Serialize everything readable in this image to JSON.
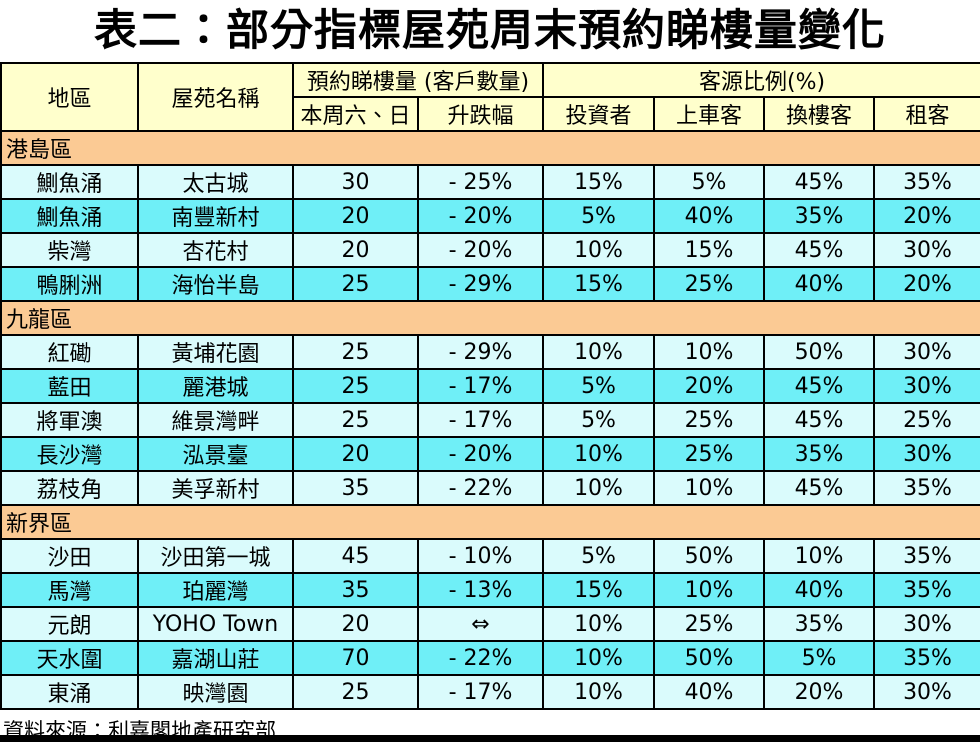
{
  "chart_data": {
    "type": "table",
    "title": "表二：部分指標屋苑周末預約睇樓量變化",
    "header": {
      "district": "地區",
      "estate": "屋苑名稱",
      "bookings_group": "預約睇樓量 (客戶數量)",
      "source_group": "客源比例(%)",
      "subcolumns": [
        "本周六、日",
        "升跌幅",
        "投資者",
        "上車客",
        "換樓客",
        "租客"
      ]
    },
    "sections": [
      {
        "name": "港島區",
        "rows": [
          [
            "鰂魚涌",
            "太古城",
            "30",
            "- 25%",
            "15%",
            "5%",
            "45%",
            "35%"
          ],
          [
            "鰂魚涌",
            "南豐新村",
            "20",
            "- 20%",
            "5%",
            "40%",
            "35%",
            "20%"
          ],
          [
            "柴灣",
            "杏花村",
            "20",
            "- 20%",
            "10%",
            "15%",
            "45%",
            "30%"
          ],
          [
            "鴨脷洲",
            "海怡半島",
            "25",
            "- 29%",
            "15%",
            "25%",
            "40%",
            "20%"
          ]
        ]
      },
      {
        "name": "九龍區",
        "rows": [
          [
            "紅磡",
            "黃埔花園",
            "25",
            "- 29%",
            "10%",
            "10%",
            "50%",
            "30%"
          ],
          [
            "藍田",
            "麗港城",
            "25",
            "- 17%",
            "5%",
            "20%",
            "45%",
            "30%"
          ],
          [
            "將軍澳",
            "維景灣畔",
            "25",
            "- 17%",
            "5%",
            "25%",
            "45%",
            "25%"
          ],
          [
            "長沙灣",
            "泓景臺",
            "20",
            "- 20%",
            "10%",
            "25%",
            "35%",
            "30%"
          ],
          [
            "荔枝角",
            "美孚新村",
            "35",
            "- 22%",
            "10%",
            "10%",
            "45%",
            "35%"
          ]
        ]
      },
      {
        "name": "新界區",
        "rows": [
          [
            "沙田",
            "沙田第一城",
            "45",
            "- 10%",
            "5%",
            "50%",
            "10%",
            "35%"
          ],
          [
            "馬灣",
            "珀麗灣",
            "35",
            "- 13%",
            "15%",
            "10%",
            "40%",
            "35%"
          ],
          [
            "元朗",
            "YOHO Town",
            "20",
            "⇔",
            "10%",
            "25%",
            "35%",
            "30%"
          ],
          [
            "天水圍",
            "嘉湖山莊",
            "70",
            "- 22%",
            "10%",
            "50%",
            "5%",
            "35%"
          ],
          [
            "東涌",
            "映灣園",
            "25",
            "- 17%",
            "10%",
            "40%",
            "20%",
            "30%"
          ]
        ]
      }
    ],
    "source_note": "資料來源：利嘉閣地產研究部"
  },
  "colors": {
    "header_bg": "#FFFFCC",
    "section_bg": "#FBCA94",
    "row_light_bg": "#DAFBFC",
    "row_dark_bg": "#6FEFF7",
    "border": "#000000",
    "bottom_bar": "#000000"
  }
}
